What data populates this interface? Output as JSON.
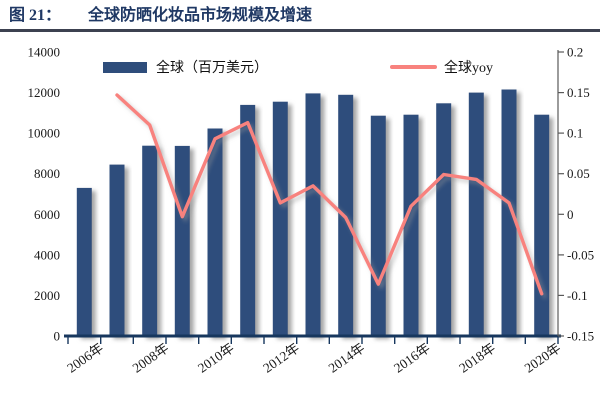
{
  "header": {
    "figure_label": "图 21：",
    "title": "全球防晒化妆品市场规模及增速"
  },
  "legend": {
    "bar_label": "全球（百万美元）",
    "line_label": "全球yoy"
  },
  "colors": {
    "title_navy": "#1F3864",
    "divider": "#3C4150",
    "bottom_axis": "#17375E",
    "right_axis": "#595959"
  },
  "chart_data": {
    "type": "bar",
    "title": "全球防晒化妆品市场规模及增速",
    "categories": [
      "2006年",
      "2007年",
      "2008年",
      "2009年",
      "2010年",
      "2011年",
      "2012年",
      "2013年",
      "2014年",
      "2015年",
      "2016年",
      "2017年",
      "2018年",
      "2019年",
      "2020年"
    ],
    "series": [
      {
        "name": "全球（百万美元）",
        "type": "bar",
        "axis": "left",
        "color": "#2E4D7B",
        "values": [
          7300,
          8450,
          9380,
          9370,
          10230,
          11390,
          11550,
          11960,
          11890,
          10860,
          10910,
          11470,
          12000,
          12150,
          10910
        ]
      },
      {
        "name": "全球yoy",
        "type": "line",
        "axis": "right",
        "color": "#F8827E",
        "values": [
          null,
          0.147,
          0.11,
          -0.003,
          0.093,
          0.113,
          0.014,
          0.035,
          -0.004,
          -0.086,
          0.01,
          0.049,
          0.043,
          0.014,
          -0.098
        ]
      }
    ],
    "left_axis": {
      "min": 0,
      "max": 14000,
      "tick_step": 2000,
      "tick_labels": [
        "14000",
        "12000",
        "10000",
        "8000",
        "6000",
        "4000",
        "2000",
        "0"
      ]
    },
    "right_axis": {
      "min": -0.15,
      "max": 0.2,
      "tick_step": 0.05,
      "tick_labels": [
        "0.2",
        "0.15",
        "0.1",
        "0.05",
        "0",
        "-0.05",
        "-0.1",
        "-0.15"
      ]
    },
    "x_tick_labels": [
      "2006年",
      "2008年",
      "2010年",
      "2012年",
      "2014年",
      "2016年",
      "2018年",
      "2020年"
    ],
    "x_label_interval": 2,
    "grid": "off",
    "legend_position": "top"
  }
}
